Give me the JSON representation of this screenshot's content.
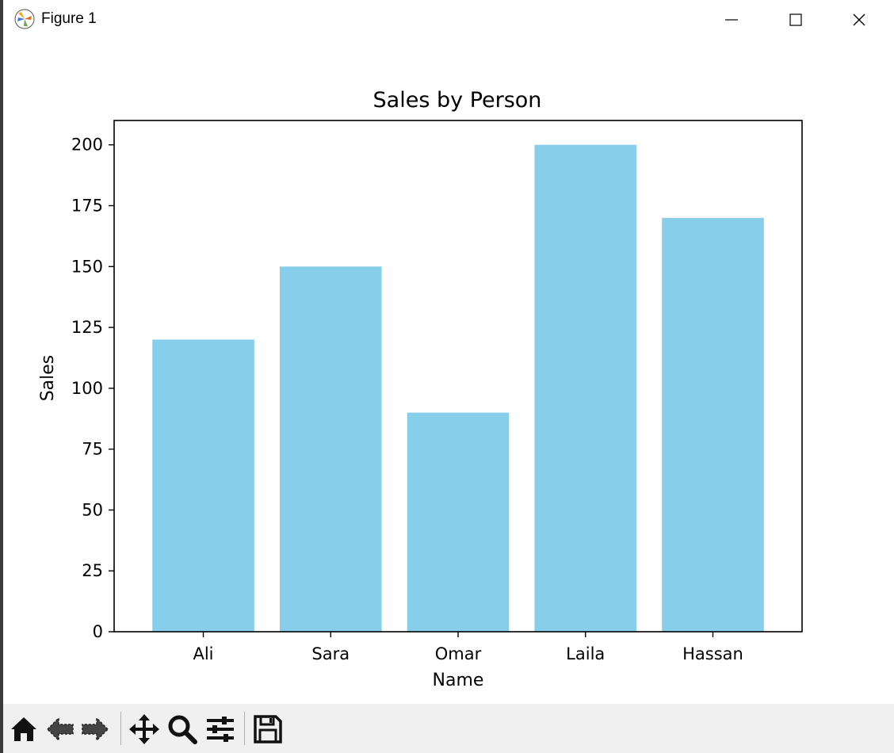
{
  "window": {
    "title": "Figure 1",
    "icons": {
      "app": "matplotlib-icon",
      "minimize": "minimize-icon",
      "maximize": "maximize-icon",
      "close": "close-icon"
    }
  },
  "toolbar": {
    "tools": [
      "home-icon",
      "back-arrow-icon",
      "forward-arrow-icon",
      "pan-icon",
      "zoom-icon",
      "configure-subplots-icon",
      "save-icon"
    ]
  },
  "chart_data": {
    "type": "bar",
    "title": "Sales by Person",
    "xlabel": "Name",
    "ylabel": "Sales",
    "categories": [
      "Ali",
      "Sara",
      "Omar",
      "Laila",
      "Hassan"
    ],
    "values": [
      120,
      150,
      90,
      200,
      170
    ],
    "ylim": [
      0,
      210
    ],
    "yticks": [
      0,
      25,
      50,
      75,
      100,
      125,
      150,
      175,
      200
    ],
    "bar_color": "#87ceeb",
    "grid": false,
    "legend": "none"
  }
}
